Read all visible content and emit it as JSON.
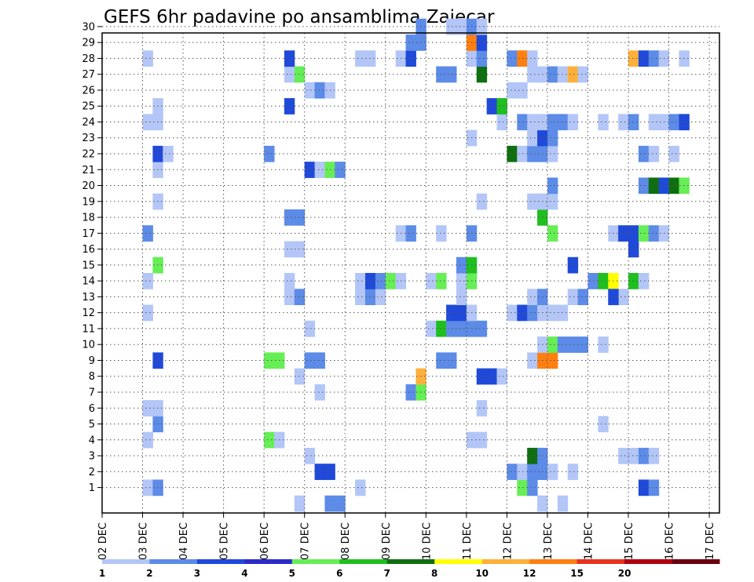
{
  "chart_data": {
    "type": "heatmap",
    "title": "GEFS 6hr padavine po ansamblima Zajecar",
    "x_tick_labels": [
      "02 DEC",
      "03 DEC",
      "04 DEC",
      "05 DEC",
      "06 DEC",
      "07 DEC",
      "08 DEC",
      "09 DEC",
      "10 DEC",
      "11 DEC",
      "12 DEC",
      "13 DEC",
      "14 DEC",
      "15 DEC",
      "16 DEC",
      "17 DEC"
    ],
    "y_tick_labels": [
      "1",
      "2",
      "3",
      "4",
      "5",
      "6",
      "7",
      "8",
      "9",
      "10",
      "11",
      "12",
      "13",
      "14",
      "15",
      "16",
      "17",
      "18",
      "19",
      "20",
      "21",
      "22",
      "23",
      "24",
      "25",
      "26",
      "27",
      "28",
      "29",
      "30"
    ],
    "xlim": [
      0,
      61
    ],
    "ylim": [
      0,
      30
    ],
    "grid": true,
    "legend": {
      "placement": "bottom",
      "thresholds": [
        "1",
        "2",
        "3",
        "4",
        "5",
        "6",
        "7",
        "8",
        "10",
        "12",
        "15",
        "20"
      ],
      "colors": [
        "#b3c6f7",
        "#5c8be8",
        "#1f49d9",
        "#2b2bc9",
        "#66ee55",
        "#1fbf1f",
        "#0f6e0f",
        "#ffff00",
        "#ffb03a",
        "#ff7f10",
        "#e8321e",
        "#b00010",
        "#6b0010"
      ]
    },
    "cells": [
      {
        "x": 4,
        "y": 1,
        "c": 1
      },
      {
        "x": 5,
        "y": 1,
        "c": 2
      },
      {
        "x": 25,
        "y": 1,
        "c": 1
      },
      {
        "x": 53,
        "y": 1,
        "c": 3
      },
      {
        "x": 54,
        "y": 1,
        "c": 2
      },
      {
        "x": 41,
        "y": 1,
        "c": 5
      },
      {
        "x": 42,
        "y": 1,
        "c": 2
      },
      {
        "x": 21,
        "y": 2,
        "c": 3
      },
      {
        "x": 22,
        "y": 2,
        "c": 3
      },
      {
        "x": 40,
        "y": 2,
        "c": 2
      },
      {
        "x": 41,
        "y": 2,
        "c": 1
      },
      {
        "x": 42,
        "y": 2,
        "c": 2
      },
      {
        "x": 43,
        "y": 2,
        "c": 2
      },
      {
        "x": 44,
        "y": 2,
        "c": 1
      },
      {
        "x": 46,
        "y": 2,
        "c": 1
      },
      {
        "x": 20,
        "y": 3,
        "c": 1
      },
      {
        "x": 42,
        "y": 3,
        "c": 7
      },
      {
        "x": 43,
        "y": 3,
        "c": 2
      },
      {
        "x": 51,
        "y": 3,
        "c": 1
      },
      {
        "x": 52,
        "y": 3,
        "c": 1
      },
      {
        "x": 53,
        "y": 3,
        "c": 2
      },
      {
        "x": 54,
        "y": 3,
        "c": 1
      },
      {
        "x": 4,
        "y": 4,
        "c": 1
      },
      {
        "x": 16,
        "y": 4,
        "c": 5
      },
      {
        "x": 17,
        "y": 4,
        "c": 1
      },
      {
        "x": 36,
        "y": 4,
        "c": 1
      },
      {
        "x": 37,
        "y": 4,
        "c": 1
      },
      {
        "x": 5,
        "y": 5,
        "c": 2
      },
      {
        "x": 49,
        "y": 5,
        "c": 1
      },
      {
        "x": 4,
        "y": 6,
        "c": 1
      },
      {
        "x": 5,
        "y": 6,
        "c": 1
      },
      {
        "x": 37,
        "y": 6,
        "c": 1
      },
      {
        "x": 21,
        "y": 7,
        "c": 1
      },
      {
        "x": 30,
        "y": 7,
        "c": 2
      },
      {
        "x": 31,
        "y": 7,
        "c": 5
      },
      {
        "x": 19,
        "y": 8,
        "c": 1
      },
      {
        "x": 31,
        "y": 8,
        "c": 9
      },
      {
        "x": 37,
        "y": 8,
        "c": 3
      },
      {
        "x": 38,
        "y": 8,
        "c": 3
      },
      {
        "x": 39,
        "y": 8,
        "c": 1
      },
      {
        "x": 5,
        "y": 9,
        "c": 3
      },
      {
        "x": 16,
        "y": 9,
        "c": 5
      },
      {
        "x": 17,
        "y": 9,
        "c": 5
      },
      {
        "x": 20,
        "y": 9,
        "c": 2
      },
      {
        "x": 21,
        "y": 9,
        "c": 2
      },
      {
        "x": 33,
        "y": 9,
        "c": 2
      },
      {
        "x": 34,
        "y": 9,
        "c": 2
      },
      {
        "x": 42,
        "y": 9,
        "c": 1
      },
      {
        "x": 43,
        "y": 9,
        "c": 10
      },
      {
        "x": 44,
        "y": 9,
        "c": 10
      },
      {
        "x": 43,
        "y": 10,
        "c": 1
      },
      {
        "x": 44,
        "y": 10,
        "c": 5
      },
      {
        "x": 45,
        "y": 10,
        "c": 2
      },
      {
        "x": 46,
        "y": 10,
        "c": 2
      },
      {
        "x": 47,
        "y": 10,
        "c": 2
      },
      {
        "x": 49,
        "y": 10,
        "c": 1
      },
      {
        "x": 20,
        "y": 11,
        "c": 1
      },
      {
        "x": 32,
        "y": 11,
        "c": 1
      },
      {
        "x": 33,
        "y": 11,
        "c": 6
      },
      {
        "x": 34,
        "y": 11,
        "c": 2
      },
      {
        "x": 35,
        "y": 11,
        "c": 2
      },
      {
        "x": 36,
        "y": 11,
        "c": 2
      },
      {
        "x": 37,
        "y": 11,
        "c": 2
      },
      {
        "x": 4,
        "y": 12,
        "c": 1
      },
      {
        "x": 34,
        "y": 12,
        "c": 3
      },
      {
        "x": 35,
        "y": 12,
        "c": 3
      },
      {
        "x": 36,
        "y": 12,
        "c": 1
      },
      {
        "x": 40,
        "y": 12,
        "c": 1
      },
      {
        "x": 41,
        "y": 12,
        "c": 3
      },
      {
        "x": 42,
        "y": 12,
        "c": 2
      },
      {
        "x": 43,
        "y": 12,
        "c": 1
      },
      {
        "x": 44,
        "y": 12,
        "c": 1
      },
      {
        "x": 45,
        "y": 12,
        "c": 1
      },
      {
        "x": 18,
        "y": 13,
        "c": 1
      },
      {
        "x": 19,
        "y": 13,
        "c": 2
      },
      {
        "x": 25,
        "y": 13,
        "c": 1
      },
      {
        "x": 26,
        "y": 13,
        "c": 2
      },
      {
        "x": 27,
        "y": 13,
        "c": 1
      },
      {
        "x": 35,
        "y": 13,
        "c": 1
      },
      {
        "x": 42,
        "y": 13,
        "c": 1
      },
      {
        "x": 43,
        "y": 13,
        "c": 2
      },
      {
        "x": 46,
        "y": 13,
        "c": 1
      },
      {
        "x": 47,
        "y": 13,
        "c": 2
      },
      {
        "x": 51,
        "y": 13,
        "c": 1
      },
      {
        "x": 4,
        "y": 14,
        "c": 1
      },
      {
        "x": 18,
        "y": 14,
        "c": 1
      },
      {
        "x": 25,
        "y": 14,
        "c": 1
      },
      {
        "x": 26,
        "y": 14,
        "c": 3
      },
      {
        "x": 27,
        "y": 14,
        "c": 2
      },
      {
        "x": 28,
        "y": 14,
        "c": 5
      },
      {
        "x": 29,
        "y": 14,
        "c": 1
      },
      {
        "x": 32,
        "y": 14,
        "c": 1
      },
      {
        "x": 33,
        "y": 14,
        "c": 5
      },
      {
        "x": 35,
        "y": 14,
        "c": 1
      },
      {
        "x": 36,
        "y": 14,
        "c": 5
      },
      {
        "x": 48,
        "y": 14,
        "c": 2
      },
      {
        "x": 49,
        "y": 14,
        "c": 6
      },
      {
        "x": 50,
        "y": 14,
        "c": 8
      },
      {
        "x": 52,
        "y": 14,
        "c": 6
      },
      {
        "x": 53,
        "y": 14,
        "c": 1
      },
      {
        "x": 50,
        "y": 13,
        "c": 3
      },
      {
        "x": 5,
        "y": 15,
        "c": 5
      },
      {
        "x": 35,
        "y": 15,
        "c": 2
      },
      {
        "x": 36,
        "y": 15,
        "c": 6
      },
      {
        "x": 46,
        "y": 15,
        "c": 3
      },
      {
        "x": 18,
        "y": 16,
        "c": 1
      },
      {
        "x": 19,
        "y": 16,
        "c": 1
      },
      {
        "x": 52,
        "y": 16,
        "c": 3
      },
      {
        "x": 4,
        "y": 17,
        "c": 2
      },
      {
        "x": 29,
        "y": 17,
        "c": 1
      },
      {
        "x": 30,
        "y": 17,
        "c": 2
      },
      {
        "x": 33,
        "y": 17,
        "c": 1
      },
      {
        "x": 36,
        "y": 17,
        "c": 2
      },
      {
        "x": 44,
        "y": 17,
        "c": 5
      },
      {
        "x": 50,
        "y": 17,
        "c": 1
      },
      {
        "x": 51,
        "y": 17,
        "c": 3
      },
      {
        "x": 52,
        "y": 17,
        "c": 3
      },
      {
        "x": 53,
        "y": 17,
        "c": 5
      },
      {
        "x": 54,
        "y": 17,
        "c": 2
      },
      {
        "x": 55,
        "y": 17,
        "c": 1
      },
      {
        "x": 18,
        "y": 18,
        "c": 2
      },
      {
        "x": 19,
        "y": 18,
        "c": 2
      },
      {
        "x": 43,
        "y": 18,
        "c": 6
      },
      {
        "x": 5,
        "y": 19,
        "c": 1
      },
      {
        "x": 37,
        "y": 19,
        "c": 1
      },
      {
        "x": 42,
        "y": 19,
        "c": 1
      },
      {
        "x": 43,
        "y": 19,
        "c": 1
      },
      {
        "x": 44,
        "y": 19,
        "c": 1
      },
      {
        "x": 53,
        "y": 20,
        "c": 2
      },
      {
        "x": 54,
        "y": 20,
        "c": 7
      },
      {
        "x": 55,
        "y": 20,
        "c": 3
      },
      {
        "x": 56,
        "y": 20,
        "c": 7
      },
      {
        "x": 57,
        "y": 20,
        "c": 5
      },
      {
        "x": 44,
        "y": 20,
        "c": 2
      },
      {
        "x": 5,
        "y": 21,
        "c": 1
      },
      {
        "x": 20,
        "y": 21,
        "c": 3
      },
      {
        "x": 21,
        "y": 21,
        "c": 1
      },
      {
        "x": 22,
        "y": 21,
        "c": 5
      },
      {
        "x": 23,
        "y": 21,
        "c": 2
      },
      {
        "x": 5,
        "y": 22,
        "c": 3
      },
      {
        "x": 6,
        "y": 22,
        "c": 1
      },
      {
        "x": 16,
        "y": 22,
        "c": 2
      },
      {
        "x": 40,
        "y": 22,
        "c": 7
      },
      {
        "x": 41,
        "y": 22,
        "c": 1
      },
      {
        "x": 42,
        "y": 22,
        "c": 2
      },
      {
        "x": 43,
        "y": 22,
        "c": 2
      },
      {
        "x": 44,
        "y": 22,
        "c": 1
      },
      {
        "x": 53,
        "y": 22,
        "c": 2
      },
      {
        "x": 54,
        "y": 22,
        "c": 1
      },
      {
        "x": 56,
        "y": 22,
        "c": 1
      },
      {
        "x": 36,
        "y": 23,
        "c": 1
      },
      {
        "x": 42,
        "y": 23,
        "c": 1
      },
      {
        "x": 43,
        "y": 23,
        "c": 3
      },
      {
        "x": 44,
        "y": 23,
        "c": 2
      },
      {
        "x": 4,
        "y": 24,
        "c": 1
      },
      {
        "x": 5,
        "y": 24,
        "c": 1
      },
      {
        "x": 39,
        "y": 24,
        "c": 1
      },
      {
        "x": 41,
        "y": 24,
        "c": 2
      },
      {
        "x": 42,
        "y": 24,
        "c": 1
      },
      {
        "x": 43,
        "y": 24,
        "c": 1
      },
      {
        "x": 44,
        "y": 24,
        "c": 2
      },
      {
        "x": 45,
        "y": 24,
        "c": 2
      },
      {
        "x": 46,
        "y": 24,
        "c": 1
      },
      {
        "x": 49,
        "y": 24,
        "c": 1
      },
      {
        "x": 51,
        "y": 24,
        "c": 1
      },
      {
        "x": 52,
        "y": 24,
        "c": 2
      },
      {
        "x": 54,
        "y": 24,
        "c": 1
      },
      {
        "x": 55,
        "y": 24,
        "c": 1
      },
      {
        "x": 56,
        "y": 24,
        "c": 2
      },
      {
        "x": 57,
        "y": 24,
        "c": 3
      },
      {
        "x": 5,
        "y": 25,
        "c": 1
      },
      {
        "x": 18,
        "y": 25,
        "c": 3
      },
      {
        "x": 38,
        "y": 25,
        "c": 3
      },
      {
        "x": 39,
        "y": 25,
        "c": 6
      },
      {
        "x": 20,
        "y": 26,
        "c": 1
      },
      {
        "x": 21,
        "y": 26,
        "c": 2
      },
      {
        "x": 22,
        "y": 26,
        "c": 1
      },
      {
        "x": 40,
        "y": 26,
        "c": 1
      },
      {
        "x": 41,
        "y": 26,
        "c": 1
      },
      {
        "x": 18,
        "y": 27,
        "c": 1
      },
      {
        "x": 19,
        "y": 27,
        "c": 5
      },
      {
        "x": 33,
        "y": 27,
        "c": 2
      },
      {
        "x": 34,
        "y": 27,
        "c": 2
      },
      {
        "x": 37,
        "y": 27,
        "c": 7
      },
      {
        "x": 42,
        "y": 27,
        "c": 1
      },
      {
        "x": 43,
        "y": 27,
        "c": 1
      },
      {
        "x": 44,
        "y": 27,
        "c": 2
      },
      {
        "x": 45,
        "y": 27,
        "c": 1
      },
      {
        "x": 46,
        "y": 27,
        "c": 9
      },
      {
        "x": 47,
        "y": 27,
        "c": 1
      },
      {
        "x": 4,
        "y": 28,
        "c": 1
      },
      {
        "x": 18,
        "y": 28,
        "c": 3
      },
      {
        "x": 25,
        "y": 28,
        "c": 1
      },
      {
        "x": 26,
        "y": 28,
        "c": 1
      },
      {
        "x": 29,
        "y": 28,
        "c": 1
      },
      {
        "x": 30,
        "y": 28,
        "c": 3
      },
      {
        "x": 36,
        "y": 28,
        "c": 1
      },
      {
        "x": 37,
        "y": 28,
        "c": 2
      },
      {
        "x": 40,
        "y": 28,
        "c": 2
      },
      {
        "x": 41,
        "y": 28,
        "c": 10
      },
      {
        "x": 42,
        "y": 28,
        "c": 1
      },
      {
        "x": 52,
        "y": 28,
        "c": 9
      },
      {
        "x": 53,
        "y": 28,
        "c": 3
      },
      {
        "x": 54,
        "y": 28,
        "c": 2
      },
      {
        "x": 55,
        "y": 28,
        "c": 1
      },
      {
        "x": 57,
        "y": 28,
        "c": 1
      },
      {
        "x": 30,
        "y": 29,
        "c": 2
      },
      {
        "x": 31,
        "y": 29,
        "c": 2
      },
      {
        "x": 36,
        "y": 29,
        "c": 10
      },
      {
        "x": 37,
        "y": 29,
        "c": 3
      },
      {
        "x": 31,
        "y": 30,
        "c": 2
      },
      {
        "x": 34,
        "y": 30,
        "c": 1
      },
      {
        "x": 35,
        "y": 30,
        "c": 1
      },
      {
        "x": 36,
        "y": 30,
        "c": 2
      },
      {
        "x": 37,
        "y": 30,
        "c": 1
      },
      {
        "x": 19,
        "y": 0,
        "c": 1
      },
      {
        "x": 22,
        "y": 0,
        "c": 2
      },
      {
        "x": 23,
        "y": 0,
        "c": 2
      },
      {
        "x": 43,
        "y": 0,
        "c": 1
      },
      {
        "x": 45,
        "y": 0,
        "c": 1
      }
    ]
  }
}
